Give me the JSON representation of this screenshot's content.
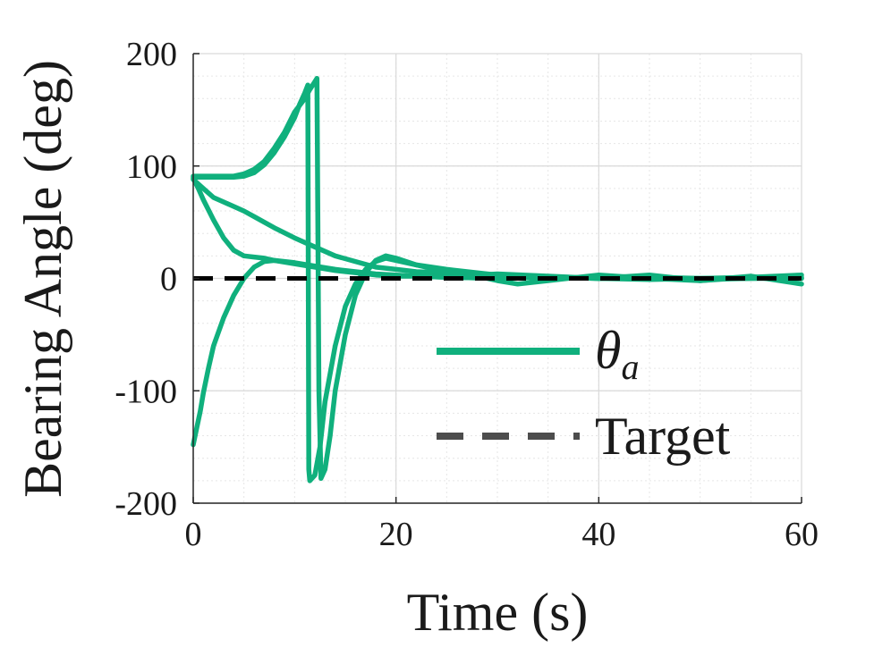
{
  "chart_data": {
    "type": "line",
    "xlabel": "Time (s)",
    "ylabel": "Bearing Angle (deg)",
    "xlim": [
      0,
      60
    ],
    "ylim": [
      -200,
      200
    ],
    "xticks": [
      0,
      20,
      40,
      60
    ],
    "yticks": [
      200,
      100,
      0,
      -100,
      -200
    ],
    "xtick_labels": [
      "0",
      "20",
      "40",
      "60"
    ],
    "ytick_labels": [
      "200",
      "100",
      "0",
      "-100",
      "-200"
    ],
    "grid": true,
    "minor_grid": true,
    "legend_position": "lower-right",
    "legend": [
      {
        "label": "θ",
        "subscript": "a",
        "style": "solid",
        "color": "#10b07d"
      },
      {
        "label": "Target",
        "style": "dashed",
        "color": "#4d4d4d"
      }
    ],
    "target": {
      "name": "Target",
      "y": 0,
      "color": "#000000"
    },
    "series_color": "#10b07d",
    "series": [
      {
        "x": [
          0,
          1,
          2,
          3,
          4,
          5,
          6,
          7,
          8,
          9,
          10,
          10.5,
          11,
          11.3,
          11.4,
          11.5,
          12,
          12.5,
          13,
          14,
          15,
          16,
          17,
          18,
          19,
          20,
          22,
          25,
          28,
          30,
          33,
          35,
          40,
          45,
          50,
          55,
          60
        ],
        "y": [
          90,
          90,
          90,
          90,
          90,
          91,
          94,
          101,
          112,
          126,
          143,
          155,
          165,
          172,
          -170,
          -180,
          -175,
          -150,
          -110,
          -60,
          -25,
          -5,
          8,
          15,
          18,
          16,
          12,
          8,
          5,
          3,
          2,
          1,
          0,
          1,
          -1,
          0,
          0
        ]
      },
      {
        "x": [
          0,
          1,
          2,
          3,
          4,
          5,
          6,
          7,
          8,
          9,
          10,
          11,
          11.5,
          12,
          12.2,
          12.4,
          12.6,
          13,
          13.5,
          14,
          15,
          16,
          17,
          18,
          19,
          20,
          22,
          25,
          28,
          30,
          32,
          35,
          40,
          45,
          50,
          55,
          60
        ],
        "y": [
          91,
          91,
          91,
          91,
          91,
          93,
          97,
          104,
          116,
          130,
          148,
          160,
          168,
          175,
          178,
          -100,
          -178,
          -170,
          -140,
          -100,
          -50,
          -15,
          5,
          16,
          20,
          18,
          12,
          6,
          2,
          -2,
          -5,
          -2,
          3,
          0,
          -2,
          2,
          -5
        ]
      },
      {
        "x": [
          0,
          1,
          2,
          3,
          4,
          5,
          6,
          8,
          10,
          12,
          14,
          16,
          18,
          20,
          22,
          25,
          28,
          30,
          35,
          40,
          45,
          50,
          55,
          60
        ],
        "y": [
          88,
          80,
          72,
          68,
          64,
          60,
          55,
          45,
          36,
          28,
          20,
          15,
          10,
          8,
          6,
          5,
          3,
          4,
          2,
          0,
          3,
          -2,
          1,
          3
        ]
      },
      {
        "x": [
          0,
          0.5,
          1,
          2,
          3,
          4,
          5,
          6,
          7,
          8,
          10,
          12,
          14,
          16,
          18,
          20,
          22,
          25,
          30,
          35,
          40,
          45,
          50,
          55,
          60
        ],
        "y": [
          89,
          80,
          70,
          52,
          36,
          25,
          20,
          19,
          18,
          16,
          13,
          10,
          7,
          5,
          3,
          2,
          2,
          1,
          0,
          1,
          0,
          1,
          0,
          0,
          1
        ]
      },
      {
        "x": [
          0,
          0.3,
          0.7,
          1,
          1.5,
          2,
          3,
          4,
          5,
          6,
          7,
          8,
          9,
          10,
          12,
          14,
          16,
          18,
          20,
          22,
          25,
          30,
          35,
          40,
          45,
          50,
          55,
          60
        ],
        "y": [
          -148,
          -135,
          -118,
          -102,
          -80,
          -60,
          -35,
          -15,
          0,
          10,
          15,
          16,
          15,
          14,
          11,
          8,
          6,
          4,
          3,
          2,
          1,
          0,
          1,
          0,
          -1,
          0,
          1,
          0
        ]
      }
    ]
  }
}
